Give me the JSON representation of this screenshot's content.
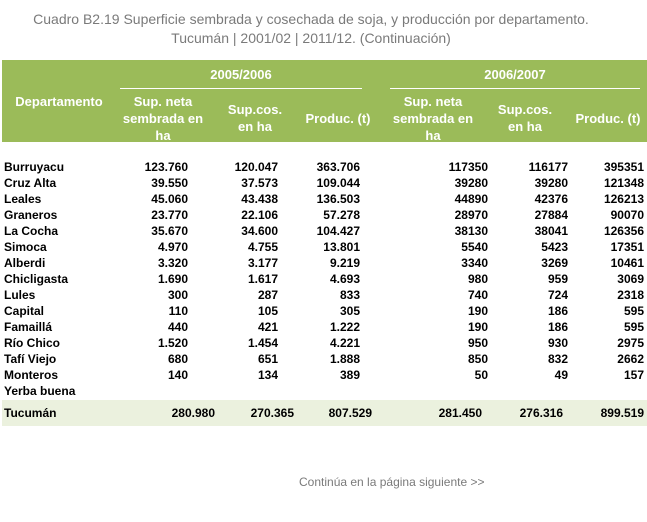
{
  "title_line1": "Cuadro B2.19 Superficie sembrada y cosechada de soja, y producción por departamento.",
  "title_line2": "Tucumán | 2001/02 | 2011/12. (Continuación)",
  "header": {
    "departamento": "Departamento",
    "period_a": "2005/2006",
    "period_b": "2006/2007",
    "sup_neta": "Sup. neta sembrada en ha",
    "sup_cos": "Sup.cos. en ha",
    "produc": "Produc. (t)"
  },
  "rows": [
    {
      "name": "Burruyacu",
      "a1": "123.760",
      "a2": "120.047",
      "a3": "363.706",
      "b1": "117350",
      "b2": "116177",
      "b3": "395351"
    },
    {
      "name": "Cruz Alta",
      "a1": "39.550",
      "a2": "37.573",
      "a3": "109.044",
      "b1": "39280",
      "b2": "39280",
      "b3": "121348"
    },
    {
      "name": "Leales",
      "a1": "45.060",
      "a2": "43.438",
      "a3": "136.503",
      "b1": "44890",
      "b2": "42376",
      "b3": "126213"
    },
    {
      "name": "Graneros",
      "a1": "23.770",
      "a2": "22.106",
      "a3": "57.278",
      "b1": "28970",
      "b2": "27884",
      "b3": "90070"
    },
    {
      "name": "La Cocha",
      "a1": "35.670",
      "a2": "34.600",
      "a3": "104.427",
      "b1": "38130",
      "b2": "38041",
      "b3": "126356"
    },
    {
      "name": "Simoca",
      "a1": "4.970",
      "a2": "4.755",
      "a3": "13.801",
      "b1": "5540",
      "b2": "5423",
      "b3": "17351"
    },
    {
      "name": "Alberdi",
      "a1": "3.320",
      "a2": "3.177",
      "a3": "9.219",
      "b1": "3340",
      "b2": "3269",
      "b3": "10461"
    },
    {
      "name": "Chicligasta",
      "a1": "1.690",
      "a2": "1.617",
      "a3": "4.693",
      "b1": "980",
      "b2": "959",
      "b3": "3069"
    },
    {
      "name": "Lules",
      "a1": "300",
      "a2": "287",
      "a3": "833",
      "b1": "740",
      "b2": "724",
      "b3": "2318"
    },
    {
      "name": "Capital",
      "a1": "110",
      "a2": "105",
      "a3": "305",
      "b1": "190",
      "b2": "186",
      "b3": "595"
    },
    {
      "name": "Famaillá",
      "a1": "440",
      "a2": "421",
      "a3": "1.222",
      "b1": "190",
      "b2": "186",
      "b3": "595"
    },
    {
      "name": "Río Chico",
      "a1": "1.520",
      "a2": "1.454",
      "a3": "4.221",
      "b1": "950",
      "b2": "930",
      "b3": "2975"
    },
    {
      "name": "Tafí Viejo",
      "a1": "680",
      "a2": "651",
      "a3": "1.888",
      "b1": "850",
      "b2": "832",
      "b3": "2662"
    },
    {
      "name": "Monteros",
      "a1": "140",
      "a2": "134",
      "a3": "389",
      "b1": "50",
      "b2": "49",
      "b3": "157"
    },
    {
      "name": "Yerba buena",
      "a1": "",
      "a2": "",
      "a3": "",
      "b1": "",
      "b2": "",
      "b3": ""
    }
  ],
  "total": {
    "name": "Tucumán",
    "a1": "280.980",
    "a2": "270.365",
    "a3": "807.529",
    "b1": "281.450",
    "b2": "276.316",
    "b3": "899.519"
  },
  "footer": "Continúa en la página siguiente >>",
  "colors": {
    "header_bg": "#9bbb59",
    "total_bg": "#ebf1de",
    "title_text": "#7a7a7a"
  }
}
